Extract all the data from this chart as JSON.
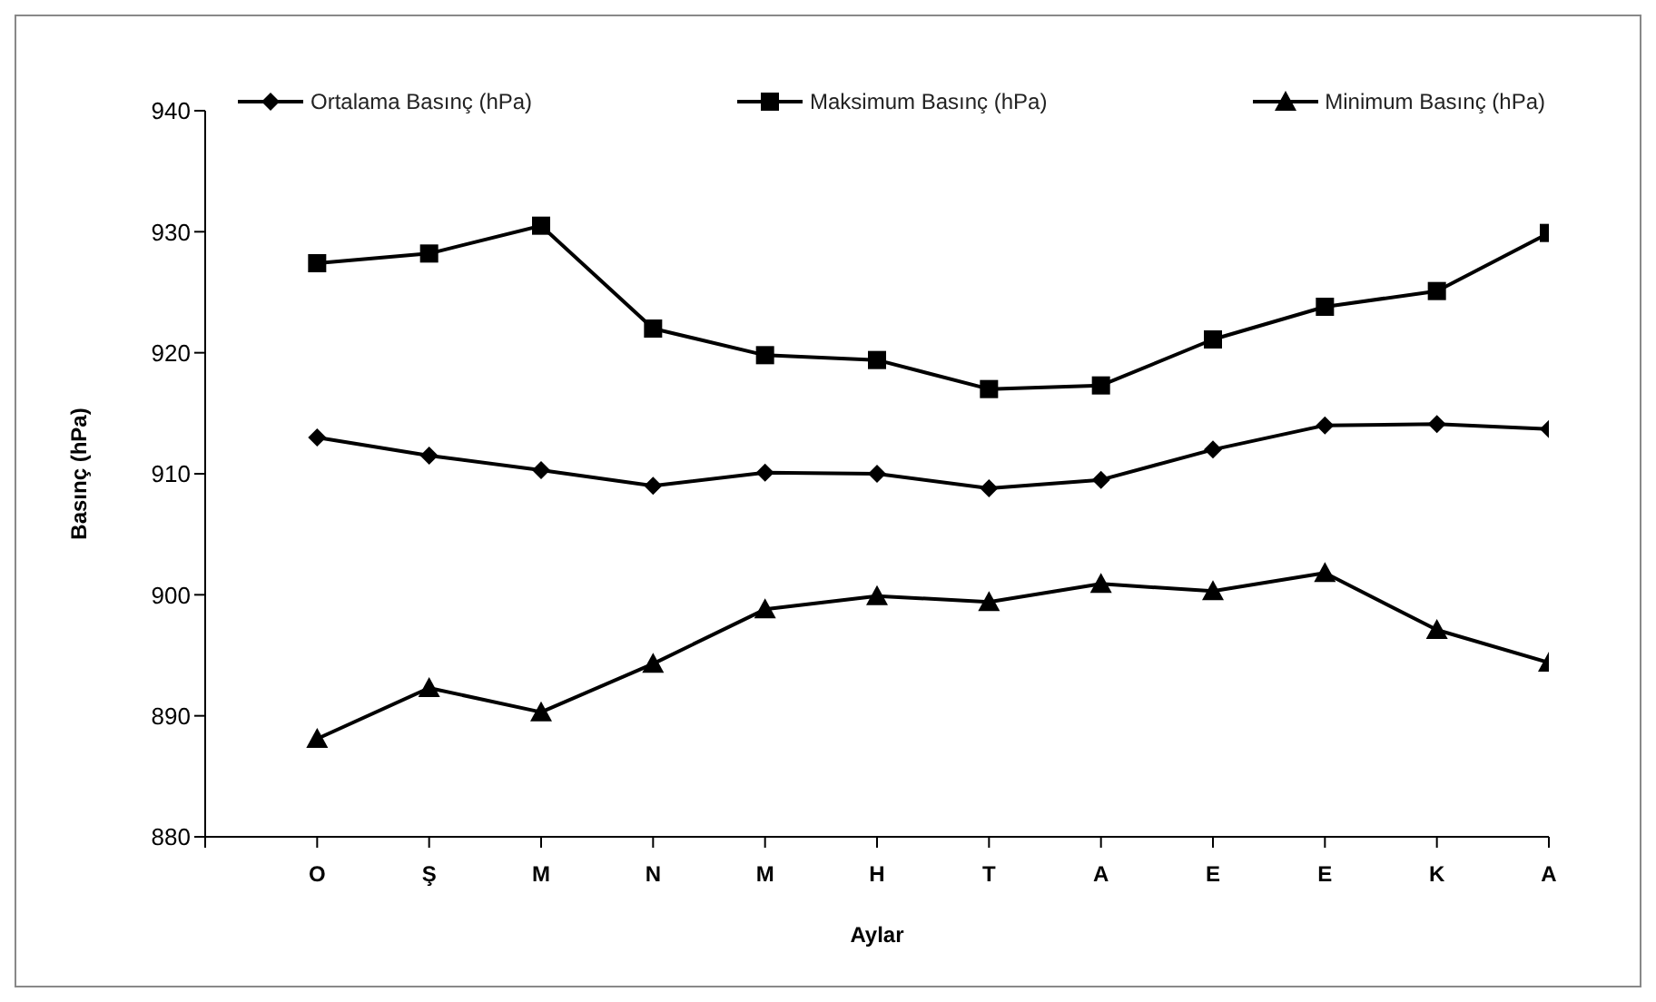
{
  "chart_data": {
    "type": "line",
    "xlabel": "Aylar",
    "ylabel": "Basınç (hPa)",
    "categories": [
      null,
      "O",
      "Ş",
      "M",
      "N",
      "M",
      "H",
      "T",
      "A",
      "E",
      "E",
      "K",
      "A"
    ],
    "series": [
      {
        "name": "Ortalama Basınç (hPa)",
        "color": "#000000",
        "marker": "diamond",
        "values": [
          null,
          913.0,
          911.5,
          910.3,
          909.0,
          910.1,
          910.0,
          908.8,
          909.5,
          912.0,
          914.0,
          914.1,
          913.7
        ]
      },
      {
        "name": "Maksimum Basınç (hPa)",
        "color": "#000000",
        "marker": "square",
        "values": [
          null,
          927.4,
          928.2,
          930.5,
          922.0,
          919.8,
          919.4,
          917.0,
          917.3,
          921.1,
          923.8,
          925.1,
          929.9
        ]
      },
      {
        "name": "Minimum Basınç (hPa)",
        "color": "#000000",
        "marker": "triangle",
        "values": [
          null,
          888.1,
          892.3,
          890.3,
          894.3,
          898.8,
          899.9,
          899.4,
          900.9,
          900.3,
          901.8,
          897.1,
          894.4
        ]
      }
    ],
    "ylim": [
      880,
      940
    ],
    "yticks": [
      880,
      890,
      900,
      910,
      920,
      930,
      940
    ],
    "grid": false,
    "legend": "top",
    "line_style": "solid"
  }
}
